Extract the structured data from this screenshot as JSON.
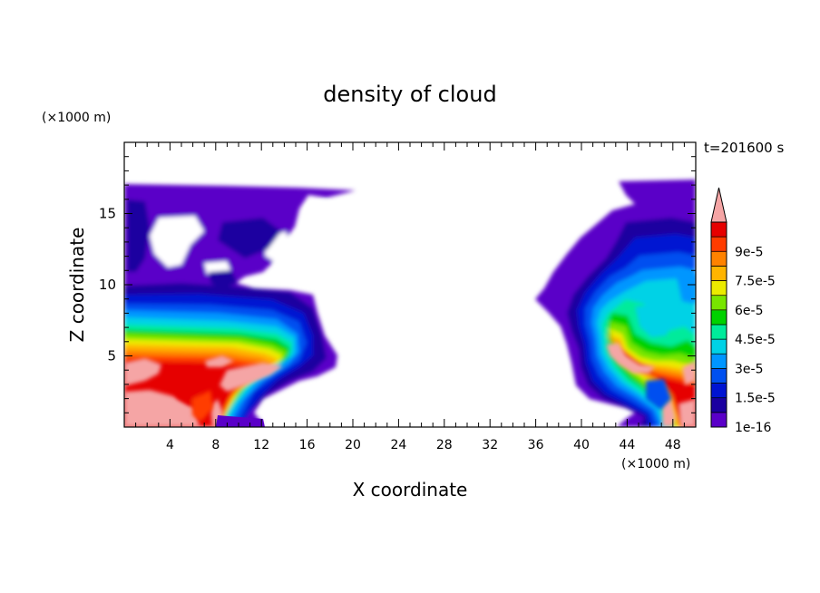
{
  "chart_data": {
    "type": "heatmap",
    "title": "density of cloud",
    "xlabel": "X coordinate",
    "ylabel": "Z coordinate",
    "x_unit_label": "(×1000 m)",
    "y_unit_label": "(×1000 m)",
    "time_label": "t=201600 s",
    "xlim": [
      0,
      50
    ],
    "ylim": [
      0,
      20
    ],
    "x_ticks": [
      4,
      8,
      12,
      16,
      20,
      24,
      28,
      32,
      36,
      40,
      44,
      48
    ],
    "y_ticks": [
      5,
      10,
      15
    ],
    "colorbar": {
      "levels": [
        1e-16,
        7.5e-06,
        1.5e-05,
        2.25e-05,
        3e-05,
        3.75e-05,
        4.5e-05,
        5.25e-05,
        6e-05,
        6.75e-05,
        7.5e-05,
        8.25e-05,
        9e-05,
        9.75e-05
      ],
      "tick_labels": [
        "1e-16",
        "1.5e-5",
        "3e-5",
        "4.5e-5",
        "6e-5",
        "7.5e-5",
        "9e-5"
      ],
      "colors": [
        "#5a00c8",
        "#1a00a0",
        "#0014d2",
        "#0050f0",
        "#0096ff",
        "#00d2e6",
        "#00eb9b",
        "#00d200",
        "#78e600",
        "#ebeb00",
        "#ffb400",
        "#ff8200",
        "#ff3c00",
        "#e60000"
      ],
      "over_color": "#f5a5a5"
    },
    "cloud_regions": [
      {
        "name": "left cloud",
        "x_range": [
          0,
          19
        ],
        "z_range": [
          0,
          17
        ],
        "max_level": "over 9e-5 near surface"
      },
      {
        "name": "right cloud",
        "x_range": [
          37,
          50
        ],
        "z_range": [
          0,
          17
        ],
        "max_level": "over 9e-5 at x 43-45, z 4-6"
      }
    ]
  }
}
